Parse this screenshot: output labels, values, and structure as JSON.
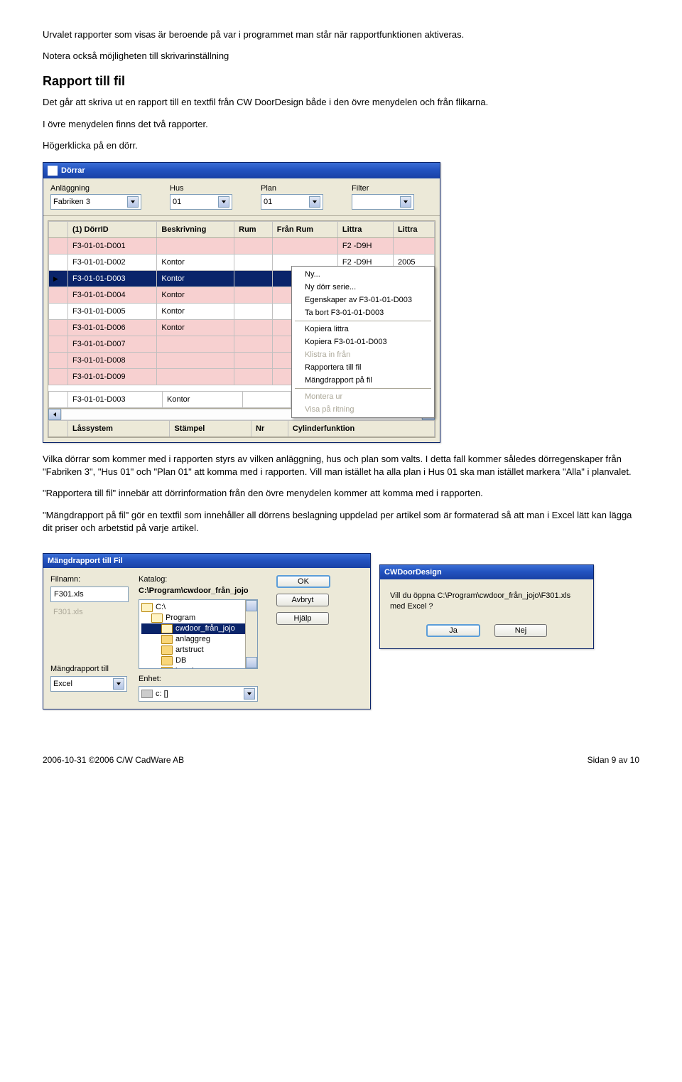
{
  "colors": {
    "xp_blue_titlebar": "#2353c0",
    "xp_bg": "#ece9d8",
    "selection": "#0a246a",
    "pink_row": "#f7d0d0",
    "border": "#7f9db9"
  },
  "doc": {
    "intro1": "Urvalet rapporter som visas är beroende på var i programmet man står när rapportfunktionen aktiveras.",
    "intro2": "Notera också möjligheten till skrivarinställning",
    "section_title": "Rapport till fil",
    "p1": "Det går att skriva ut en rapport till en textfil från CW DoorDesign både i den övre menydelen och från flikarna.",
    "p2": "I övre menydelen finns det två rapporter.",
    "p3": "Högerklicka på en dörr.",
    "p4": "Vilka dörrar som kommer med i rapporten styrs av vilken anläggning, hus och plan som valts. I detta fall kommer således dörregenskaper från \"Fabriken 3\", \"Hus 01\" och \"Plan 01\" att komma med i rapporten. Vill man istället ha alla plan i Hus 01 ska man istället markera \"Alla\" i planvalet.",
    "p5": "\"Rapportera till fil\" innebär att dörrinformation från den övre menydelen kommer att komma med i rapporten.",
    "p6": "\"Mängdrapport på fil\" gör en textfil som innehåller all dörrens beslagning uppdelad per artikel som är formaterad så att man i Excel lätt kan lägga dit priser och arbetstid på varje artikel."
  },
  "dorrar": {
    "title": "Dörrar",
    "filters": {
      "anlaggning_label": "Anläggning",
      "anlaggning_value": "Fabriken 3",
      "hus_label": "Hus",
      "hus_value": "01",
      "plan_label": "Plan",
      "plan_value": "01",
      "filter_label": "Filter",
      "filter_value": ""
    },
    "columns": [
      "(1) DörrID",
      "Beskrivning",
      "Rum",
      "Från Rum",
      "Littra",
      "Littra"
    ],
    "rows": [
      {
        "id": "F3-01-01-D001",
        "besk": "",
        "rum": "",
        "fran": "",
        "littra": "F2 -D9H",
        "littra2": "",
        "cls": "pink"
      },
      {
        "id": "F3-01-01-D002",
        "besk": "Kontor",
        "rum": "",
        "fran": "",
        "littra": "F2 -D9H",
        "littra2": "2005",
        "cls": "white"
      },
      {
        "id": "F3-01-01-D003",
        "besk": "Kontor",
        "rum": "",
        "fran": "",
        "littra": "",
        "littra2": "",
        "cls": "sel",
        "mark": true
      },
      {
        "id": "F3-01-01-D004",
        "besk": "Kontor",
        "rum": "",
        "fran": "",
        "littra": "",
        "littra2": "",
        "cls": "pink"
      },
      {
        "id": "F3-01-01-D005",
        "besk": "Kontor",
        "rum": "",
        "fran": "",
        "littra": "",
        "littra2": "",
        "cls": "white"
      },
      {
        "id": "F3-01-01-D006",
        "besk": "Kontor",
        "rum": "",
        "fran": "",
        "littra": "",
        "littra2": "",
        "cls": "pink"
      },
      {
        "id": "F3-01-01-D007",
        "besk": "",
        "rum": "",
        "fran": "",
        "littra": "",
        "littra2": "",
        "cls": "pink"
      },
      {
        "id": "F3-01-01-D008",
        "besk": "",
        "rum": "",
        "fran": "",
        "littra": "",
        "littra2": "",
        "cls": "pink"
      },
      {
        "id": "F3-01-01-D009",
        "besk": "",
        "rum": "",
        "fran": "",
        "littra": "",
        "littra2": "",
        "cls": "pink"
      }
    ],
    "editrow": {
      "id": "F3-01-01-D003",
      "besk": "Kontor"
    },
    "lower_columns": [
      "Låssystem",
      "Stämpel",
      "Nr",
      "Cylinderfunktion"
    ]
  },
  "context": {
    "items": [
      {
        "label": "Ny...",
        "enabled": true
      },
      {
        "label": "Ny dörr serie...",
        "enabled": true
      },
      {
        "label": "Egenskaper av F3-01-01-D003",
        "enabled": true
      },
      {
        "label": "Ta bort F3-01-01-D003",
        "enabled": true
      },
      {
        "sep": true
      },
      {
        "label": "Kopiera littra",
        "enabled": true
      },
      {
        "label": "Kopiera F3-01-01-D003",
        "enabled": true
      },
      {
        "label": "Klistra in från",
        "enabled": false
      },
      {
        "label": "Rapportera till fil",
        "enabled": true
      },
      {
        "label": "Mängdrapport på fil",
        "enabled": true
      },
      {
        "sep": true
      },
      {
        "label": "Montera ur",
        "enabled": false
      },
      {
        "label": "Visa på ritning",
        "enabled": false
      }
    ]
  },
  "mangd": {
    "title": "Mängdrapport till Fil",
    "filnamn_label": "Filnamn:",
    "filnamn_value": "F301.xls",
    "filnamn_hint": "F301.xls",
    "katalog_label": "Katalog:",
    "katalog_path": "C:\\Program\\cwdoor_från_jojo",
    "folders": [
      {
        "name": "C:\\",
        "open": true,
        "indent": 0
      },
      {
        "name": "Program",
        "open": true,
        "indent": 1
      },
      {
        "name": "cwdoor_från_jojo",
        "open": true,
        "indent": 2,
        "selected": true
      },
      {
        "name": "anlaggreg",
        "open": false,
        "indent": 2
      },
      {
        "name": "artstruct",
        "open": false,
        "indent": 2
      },
      {
        "name": "DB",
        "open": false,
        "indent": 2
      },
      {
        "name": "kcanlagg",
        "open": false,
        "indent": 2
      }
    ],
    "ok": "OK",
    "avbryt": "Avbryt",
    "hjalp": "Hjälp",
    "mangd_till_label": "Mängdrapport till",
    "mangd_till_value": "Excel",
    "enhet_label": "Enhet:",
    "enhet_value": "c: []"
  },
  "msgbox": {
    "title": "CWDoorDesign",
    "text": "Vill du öppna C:\\Program\\cwdoor_från_jojo\\F301.xls med Excel ?",
    "ja": "Ja",
    "nej": "Nej"
  },
  "footer": {
    "left": "2006-10-31 ©2006 C/W CadWare AB",
    "right": "Sidan 9 av 10"
  }
}
